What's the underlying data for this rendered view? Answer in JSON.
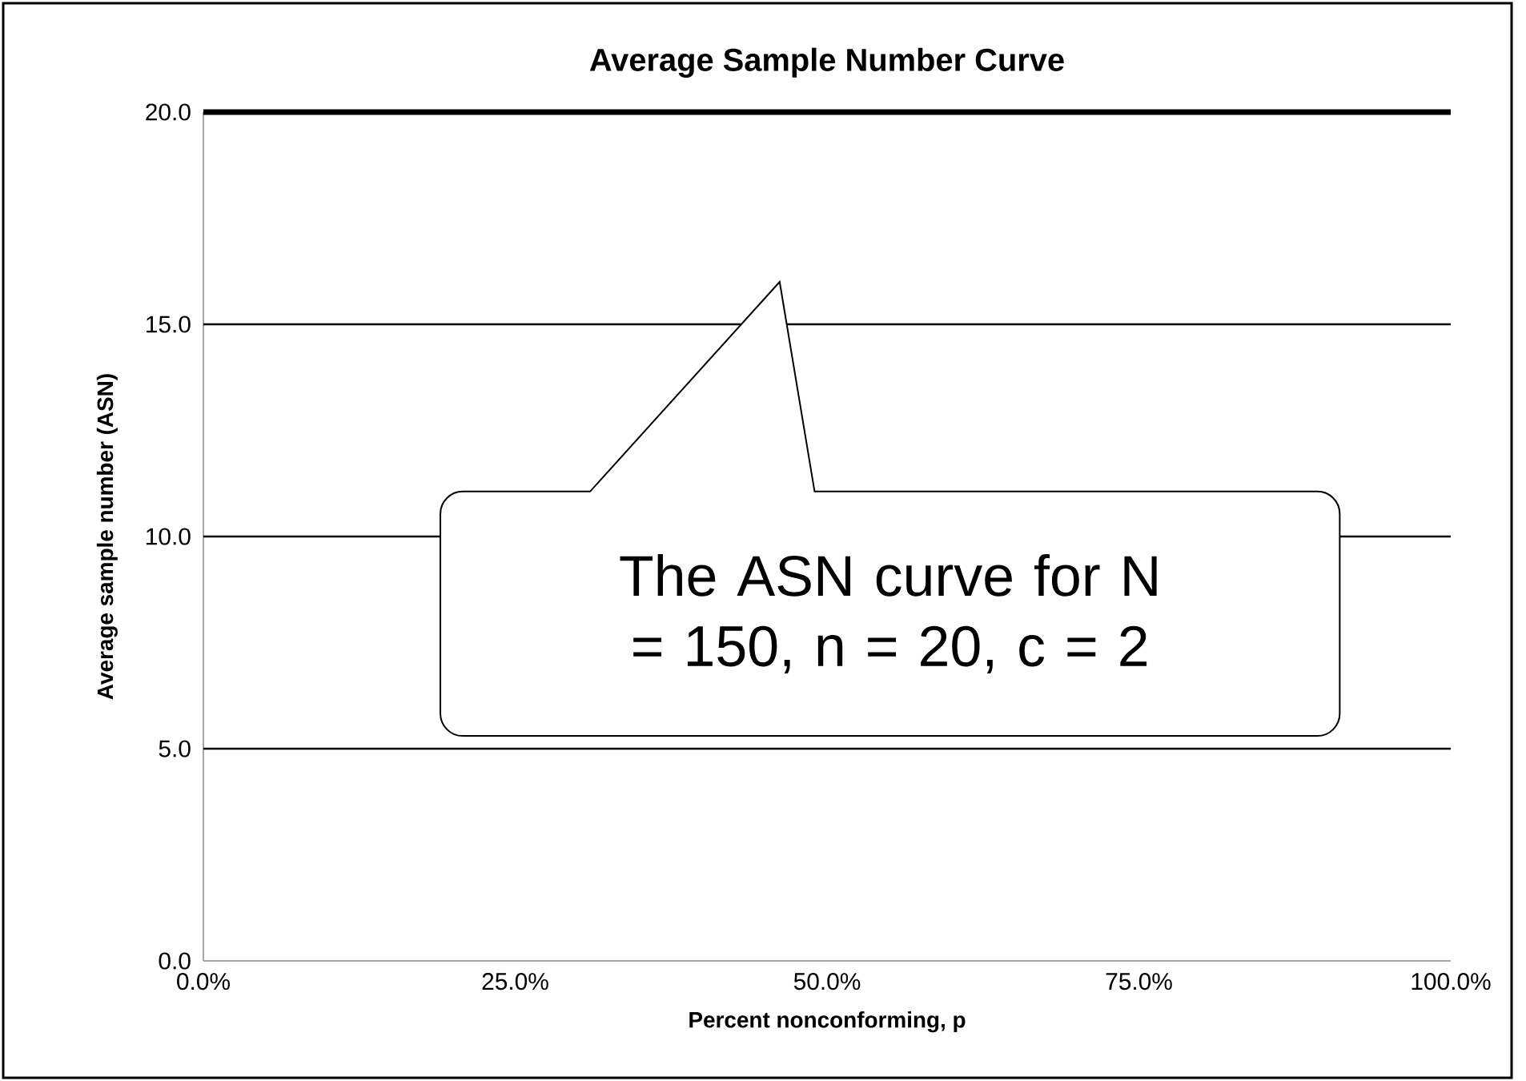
{
  "chart_data": {
    "type": "line",
    "title": "Average Sample Number Curve",
    "xlabel": "Percent nonconforming, p",
    "ylabel": "Average sample number (ASN)",
    "x": [
      0,
      100
    ],
    "series": [
      {
        "color": "#000000",
        "values": [
          20,
          20
        ]
      }
    ],
    "xlim": [
      0,
      100
    ],
    "ylim": [
      0,
      20
    ],
    "xticks": [
      {
        "value": 0,
        "label": "0.0%"
      },
      {
        "value": 25,
        "label": "25.0%"
      },
      {
        "value": 50,
        "label": "50.0%"
      },
      {
        "value": 75,
        "label": "75.0%"
      },
      {
        "value": 100,
        "label": "100.0%"
      }
    ],
    "yticks": [
      {
        "value": 0,
        "label": "0.0"
      },
      {
        "value": 5,
        "label": "5.0"
      },
      {
        "value": 10,
        "label": "10.0"
      },
      {
        "value": 15,
        "label": "15.0"
      },
      {
        "value": 20,
        "label": "20.0"
      }
    ],
    "grid": "y",
    "marker": "none",
    "line_style": "solid",
    "annotations": [
      "The ASN curve for N = 150, n = 20, c = 2"
    ]
  }
}
